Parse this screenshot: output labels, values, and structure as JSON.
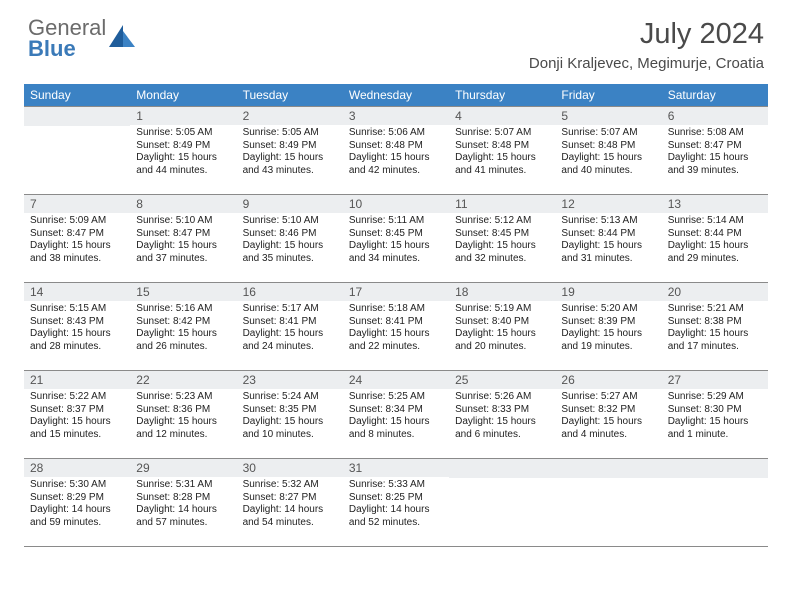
{
  "logo": {
    "line1": "General",
    "line2": "Blue"
  },
  "title": "July 2024",
  "location": "Donji Kraljevec, Megimurje, Croatia",
  "colors": {
    "header_bg": "#3b82c4",
    "header_text": "#ffffff",
    "daynum_bg": "#eceef0",
    "border": "#8a8a8a",
    "logo_gray": "#6b6b6b",
    "logo_blue": "#3b7ab8"
  },
  "day_headers": [
    "Sunday",
    "Monday",
    "Tuesday",
    "Wednesday",
    "Thursday",
    "Friday",
    "Saturday"
  ],
  "weeks": [
    [
      {
        "num": "",
        "sunrise": "",
        "sunset": "",
        "daylight": ""
      },
      {
        "num": "1",
        "sunrise": "Sunrise: 5:05 AM",
        "sunset": "Sunset: 8:49 PM",
        "daylight": "Daylight: 15 hours and 44 minutes."
      },
      {
        "num": "2",
        "sunrise": "Sunrise: 5:05 AM",
        "sunset": "Sunset: 8:49 PM",
        "daylight": "Daylight: 15 hours and 43 minutes."
      },
      {
        "num": "3",
        "sunrise": "Sunrise: 5:06 AM",
        "sunset": "Sunset: 8:48 PM",
        "daylight": "Daylight: 15 hours and 42 minutes."
      },
      {
        "num": "4",
        "sunrise": "Sunrise: 5:07 AM",
        "sunset": "Sunset: 8:48 PM",
        "daylight": "Daylight: 15 hours and 41 minutes."
      },
      {
        "num": "5",
        "sunrise": "Sunrise: 5:07 AM",
        "sunset": "Sunset: 8:48 PM",
        "daylight": "Daylight: 15 hours and 40 minutes."
      },
      {
        "num": "6",
        "sunrise": "Sunrise: 5:08 AM",
        "sunset": "Sunset: 8:47 PM",
        "daylight": "Daylight: 15 hours and 39 minutes."
      }
    ],
    [
      {
        "num": "7",
        "sunrise": "Sunrise: 5:09 AM",
        "sunset": "Sunset: 8:47 PM",
        "daylight": "Daylight: 15 hours and 38 minutes."
      },
      {
        "num": "8",
        "sunrise": "Sunrise: 5:10 AM",
        "sunset": "Sunset: 8:47 PM",
        "daylight": "Daylight: 15 hours and 37 minutes."
      },
      {
        "num": "9",
        "sunrise": "Sunrise: 5:10 AM",
        "sunset": "Sunset: 8:46 PM",
        "daylight": "Daylight: 15 hours and 35 minutes."
      },
      {
        "num": "10",
        "sunrise": "Sunrise: 5:11 AM",
        "sunset": "Sunset: 8:45 PM",
        "daylight": "Daylight: 15 hours and 34 minutes."
      },
      {
        "num": "11",
        "sunrise": "Sunrise: 5:12 AM",
        "sunset": "Sunset: 8:45 PM",
        "daylight": "Daylight: 15 hours and 32 minutes."
      },
      {
        "num": "12",
        "sunrise": "Sunrise: 5:13 AM",
        "sunset": "Sunset: 8:44 PM",
        "daylight": "Daylight: 15 hours and 31 minutes."
      },
      {
        "num": "13",
        "sunrise": "Sunrise: 5:14 AM",
        "sunset": "Sunset: 8:44 PM",
        "daylight": "Daylight: 15 hours and 29 minutes."
      }
    ],
    [
      {
        "num": "14",
        "sunrise": "Sunrise: 5:15 AM",
        "sunset": "Sunset: 8:43 PM",
        "daylight": "Daylight: 15 hours and 28 minutes."
      },
      {
        "num": "15",
        "sunrise": "Sunrise: 5:16 AM",
        "sunset": "Sunset: 8:42 PM",
        "daylight": "Daylight: 15 hours and 26 minutes."
      },
      {
        "num": "16",
        "sunrise": "Sunrise: 5:17 AM",
        "sunset": "Sunset: 8:41 PM",
        "daylight": "Daylight: 15 hours and 24 minutes."
      },
      {
        "num": "17",
        "sunrise": "Sunrise: 5:18 AM",
        "sunset": "Sunset: 8:41 PM",
        "daylight": "Daylight: 15 hours and 22 minutes."
      },
      {
        "num": "18",
        "sunrise": "Sunrise: 5:19 AM",
        "sunset": "Sunset: 8:40 PM",
        "daylight": "Daylight: 15 hours and 20 minutes."
      },
      {
        "num": "19",
        "sunrise": "Sunrise: 5:20 AM",
        "sunset": "Sunset: 8:39 PM",
        "daylight": "Daylight: 15 hours and 19 minutes."
      },
      {
        "num": "20",
        "sunrise": "Sunrise: 5:21 AM",
        "sunset": "Sunset: 8:38 PM",
        "daylight": "Daylight: 15 hours and 17 minutes."
      }
    ],
    [
      {
        "num": "21",
        "sunrise": "Sunrise: 5:22 AM",
        "sunset": "Sunset: 8:37 PM",
        "daylight": "Daylight: 15 hours and 15 minutes."
      },
      {
        "num": "22",
        "sunrise": "Sunrise: 5:23 AM",
        "sunset": "Sunset: 8:36 PM",
        "daylight": "Daylight: 15 hours and 12 minutes."
      },
      {
        "num": "23",
        "sunrise": "Sunrise: 5:24 AM",
        "sunset": "Sunset: 8:35 PM",
        "daylight": "Daylight: 15 hours and 10 minutes."
      },
      {
        "num": "24",
        "sunrise": "Sunrise: 5:25 AM",
        "sunset": "Sunset: 8:34 PM",
        "daylight": "Daylight: 15 hours and 8 minutes."
      },
      {
        "num": "25",
        "sunrise": "Sunrise: 5:26 AM",
        "sunset": "Sunset: 8:33 PM",
        "daylight": "Daylight: 15 hours and 6 minutes."
      },
      {
        "num": "26",
        "sunrise": "Sunrise: 5:27 AM",
        "sunset": "Sunset: 8:32 PM",
        "daylight": "Daylight: 15 hours and 4 minutes."
      },
      {
        "num": "27",
        "sunrise": "Sunrise: 5:29 AM",
        "sunset": "Sunset: 8:30 PM",
        "daylight": "Daylight: 15 hours and 1 minute."
      }
    ],
    [
      {
        "num": "28",
        "sunrise": "Sunrise: 5:30 AM",
        "sunset": "Sunset: 8:29 PM",
        "daylight": "Daylight: 14 hours and 59 minutes."
      },
      {
        "num": "29",
        "sunrise": "Sunrise: 5:31 AM",
        "sunset": "Sunset: 8:28 PM",
        "daylight": "Daylight: 14 hours and 57 minutes."
      },
      {
        "num": "30",
        "sunrise": "Sunrise: 5:32 AM",
        "sunset": "Sunset: 8:27 PM",
        "daylight": "Daylight: 14 hours and 54 minutes."
      },
      {
        "num": "31",
        "sunrise": "Sunrise: 5:33 AM",
        "sunset": "Sunset: 8:25 PM",
        "daylight": "Daylight: 14 hours and 52 minutes."
      },
      {
        "num": "",
        "sunrise": "",
        "sunset": "",
        "daylight": ""
      },
      {
        "num": "",
        "sunrise": "",
        "sunset": "",
        "daylight": ""
      },
      {
        "num": "",
        "sunrise": "",
        "sunset": "",
        "daylight": ""
      }
    ]
  ]
}
